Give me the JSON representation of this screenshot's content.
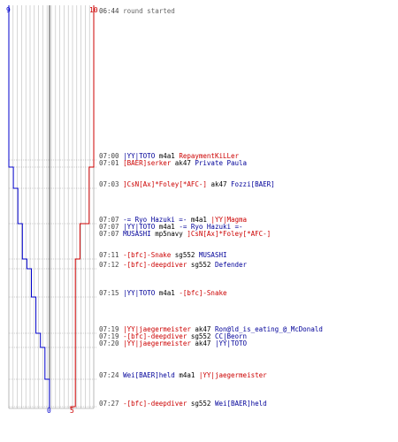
{
  "colors": {
    "blue_team": "#0000cc",
    "red_team": "#cc0000",
    "gridline": "#bbbbbb",
    "dash": "#999999"
  },
  "chart_data": {
    "type": "line",
    "ylabel": "",
    "xlabel": "",
    "top_ticks": {
      "blue": "9",
      "red": "10"
    },
    "bottom_ticks": {
      "blue": "0",
      "red": "5"
    },
    "xlim": [
      0,
      10
    ],
    "series": [
      {
        "team": "blue",
        "points": [
          [
            9,
            "06:44"
          ],
          [
            9,
            "07:00"
          ],
          [
            8,
            "07:01"
          ],
          [
            7,
            "07:03"
          ],
          [
            6,
            "07:07"
          ],
          [
            5,
            "07:11"
          ],
          [
            4,
            "07:12"
          ],
          [
            3,
            "07:15"
          ],
          [
            2,
            "07:19"
          ],
          [
            1,
            "07:20"
          ],
          [
            0,
            "07:24"
          ],
          [
            0,
            "07:27"
          ]
        ]
      },
      {
        "team": "red",
        "points": [
          [
            10,
            "06:44"
          ],
          [
            10,
            "07:00"
          ],
          [
            9,
            "07:01"
          ],
          [
            8,
            "07:07"
          ],
          [
            7,
            "07:07"
          ],
          [
            6,
            "07:11"
          ],
          [
            5,
            "07:27"
          ]
        ]
      }
    ]
  },
  "events": [
    {
      "time": "06:44",
      "message": "round started"
    },
    {
      "time": "07:00",
      "killer": "|YY|TOTO",
      "killer_team": "blue",
      "weapon": "m4a1",
      "victim": "RepaymentKiLLer",
      "victim_team": "red"
    },
    {
      "time": "07:01",
      "killer": "[BAER]serker",
      "killer_team": "red",
      "weapon": "ak47",
      "victim": "Private Paula",
      "victim_team": "blue"
    },
    {
      "time": "07:03",
      "killer": "]CsN[Ax]*Foley[*AFC-]",
      "killer_team": "red",
      "weapon": "ak47",
      "victim": "Fozzi[BAER]",
      "victim_team": "blue"
    },
    {
      "time": "07:07",
      "killer": "-= Ryo Hazuki =-",
      "killer_team": "blue",
      "weapon": "m4a1",
      "victim": "|YY|Magma",
      "victim_team": "red"
    },
    {
      "time": "07:07",
      "killer": "|YY|TOTO",
      "killer_team": "blue",
      "weapon": "m4a1",
      "victim": "-= Ryo Hazuki =-",
      "victim_team": "blue"
    },
    {
      "time": "07:07",
      "killer": "MUSASHI",
      "killer_team": "blue",
      "weapon": "mp5navy",
      "victim": "]CsN[Ax]*Foley[*AFC-]",
      "victim_team": "red"
    },
    {
      "time": "07:11",
      "killer": "-[bfc]-Snake",
      "killer_team": "red",
      "weapon": "sg552",
      "victim": "MUSASHI",
      "victim_team": "blue"
    },
    {
      "time": "07:12",
      "killer": "-[bfc]-deepdiver",
      "killer_team": "red",
      "weapon": "sg552",
      "victim": "Defender",
      "victim_team": "blue"
    },
    {
      "time": "07:15",
      "killer": "|YY|TOTO",
      "killer_team": "blue",
      "weapon": "m4a1",
      "victim": "-[bfc]-Snake",
      "victim_team": "red"
    },
    {
      "time": "07:19",
      "killer": "|YY|jaegermeister",
      "killer_team": "red",
      "weapon": "ak47",
      "victim": "Ron@ld_is_eating_@_McDonald",
      "victim_team": "blue"
    },
    {
      "time": "07:19",
      "killer": "-[bfc]-deepdiver",
      "killer_team": "red",
      "weapon": "sg552",
      "victim": "CC|Beorn",
      "victim_team": "blue"
    },
    {
      "time": "07:20",
      "killer": "|YY|jaegermeister",
      "killer_team": "red",
      "weapon": "ak47",
      "victim": "|YY|TOTO",
      "victim_team": "blue"
    },
    {
      "time": "07:24",
      "killer": "Wei[BAER]held",
      "killer_team": "blue",
      "weapon": "m4a1",
      "victim": "|YY|jaegermeister",
      "victim_team": "red"
    },
    {
      "time": "07:27",
      "killer": "-[bfc]-deepdiver",
      "killer_team": "red",
      "weapon": "sg552",
      "victim": "Wei[BAER]held",
      "victim_team": "blue"
    }
  ]
}
